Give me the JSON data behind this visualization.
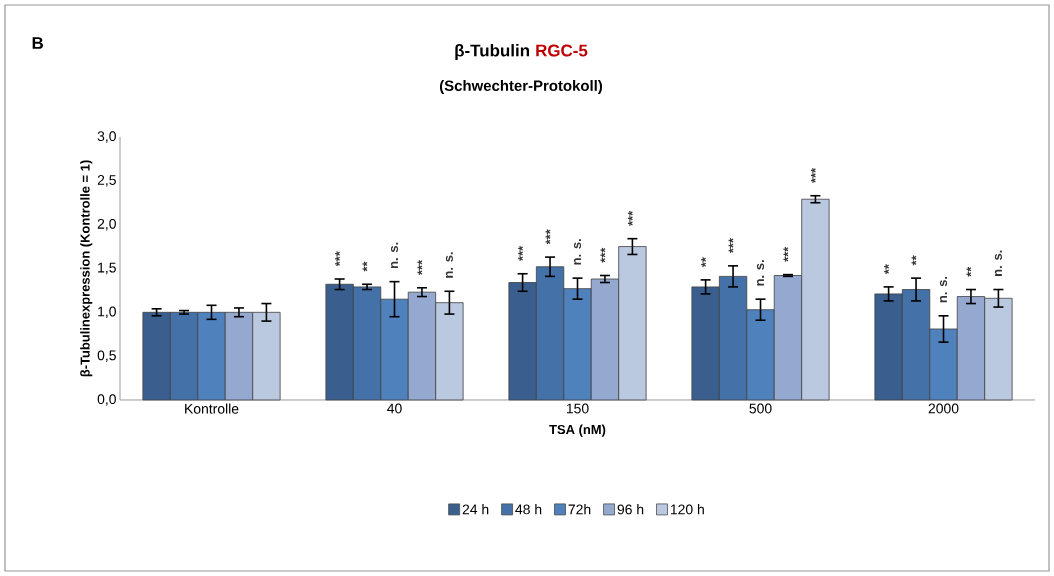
{
  "chart_data": {
    "type": "bar",
    "title": "β-Tubulin",
    "subtitle": "(Schwechter-Protokoll)",
    "xlabel": "TSA (nM)",
    "ylabel": "β-Tubulinexpression (Kontrolle = 1)",
    "annotations": [
      "B",
      "RGC-5"
    ],
    "categories": [
      "Kontrolle",
      "40",
      "150",
      "500",
      "2000"
    ],
    "ylim": [
      0,
      3
    ],
    "yticks": [
      {
        "value": 0,
        "label": "0,0"
      },
      {
        "value": 0.5,
        "label": "0,5"
      },
      {
        "value": 1,
        "label": "1,0"
      },
      {
        "value": 1.5,
        "label": "1,5"
      },
      {
        "value": 2,
        "label": "2,0"
      },
      {
        "value": 2.5,
        "label": "2,5"
      },
      {
        "value": 3,
        "label": "3,0"
      }
    ],
    "grid": false,
    "legend": "bottom",
    "series": [
      {
        "name": "24 h",
        "color": "#3a5f8f",
        "values": [
          1.0,
          1.32,
          1.34,
          1.29,
          1.21
        ],
        "errors": [
          0.04,
          0.06,
          0.1,
          0.08,
          0.08
        ],
        "value_labels": [
          null,
          "***",
          "***",
          "**",
          "**"
        ]
      },
      {
        "name": "48 h",
        "color": "#4472a8",
        "values": [
          1.0,
          1.29,
          1.52,
          1.41,
          1.26
        ],
        "errors": [
          0.02,
          0.03,
          0.11,
          0.12,
          0.13
        ],
        "value_labels": [
          null,
          "**",
          "***",
          "***",
          "**"
        ]
      },
      {
        "name": "72h",
        "color": "#4f81bd",
        "values": [
          1.0,
          1.15,
          1.27,
          1.03,
          0.81
        ],
        "errors": [
          0.08,
          0.2,
          0.12,
          0.12,
          0.15
        ],
        "value_labels": [
          null,
          "n. s.",
          "n. s.",
          "n. s.",
          "n. s."
        ]
      },
      {
        "name": "96 h",
        "color": "#95a9d0",
        "values": [
          1.0,
          1.23,
          1.38,
          1.42,
          1.18
        ],
        "errors": [
          0.05,
          0.05,
          0.04,
          0.01,
          0.08
        ],
        "value_labels": [
          null,
          "***",
          "***",
          "***",
          "**"
        ]
      },
      {
        "name": "120 h",
        "color": "#bac8e0",
        "values": [
          1.0,
          1.11,
          1.75,
          2.29,
          1.16
        ],
        "errors": [
          0.1,
          0.13,
          0.09,
          0.04,
          0.1
        ],
        "value_labels": [
          null,
          "n. s.",
          "***",
          "***",
          "n. s."
        ]
      }
    ]
  }
}
